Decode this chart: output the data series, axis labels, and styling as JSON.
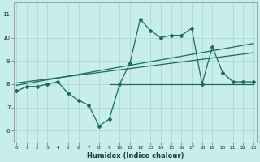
{
  "xlabel": "Humidex (Indice chaleur)",
  "bg_color": "#c8eded",
  "line_color": "#1a6b5a",
  "grid_color": "#a8d4d4",
  "main_x": [
    0,
    1,
    2,
    3,
    4,
    5,
    6,
    7,
    8,
    9,
    10,
    11,
    12,
    13,
    14,
    15,
    16,
    17,
    18,
    19,
    20,
    21,
    22,
    23
  ],
  "main_y": [
    7.7,
    7.9,
    7.9,
    8.0,
    8.1,
    7.6,
    7.3,
    7.1,
    6.2,
    6.5,
    8.0,
    8.9,
    10.8,
    10.3,
    10.0,
    10.1,
    10.1,
    10.4,
    8.0,
    9.6,
    8.5,
    8.1,
    8.1,
    8.1
  ],
  "trend1_x": [
    0,
    23
  ],
  "trend1_y": [
    7.95,
    9.75
  ],
  "trend2_x": [
    0,
    23
  ],
  "trend2_y": [
    8.05,
    9.35
  ],
  "hline_x": [
    9,
    23
  ],
  "hline_y": [
    8.0,
    8.0
  ],
  "xlim": [
    0,
    23
  ],
  "ylim": [
    5.5,
    11.5
  ],
  "xticks": [
    0,
    1,
    2,
    3,
    4,
    5,
    6,
    7,
    8,
    9,
    10,
    11,
    12,
    13,
    14,
    15,
    16,
    17,
    18,
    19,
    20,
    21,
    22,
    23
  ],
  "yticks": [
    6,
    7,
    8,
    9,
    10,
    11
  ]
}
